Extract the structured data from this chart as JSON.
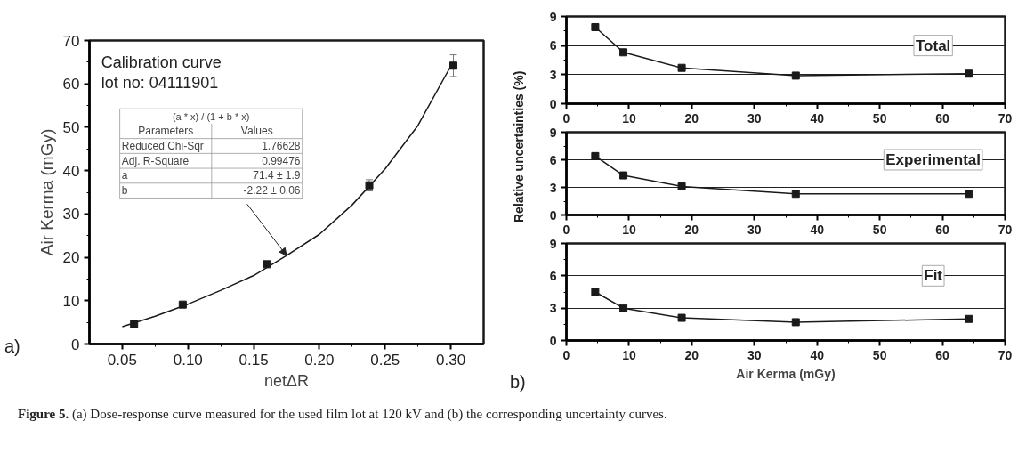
{
  "chart_data": [
    {
      "type": "scatter",
      "xlabel": "netΔR",
      "ylabel": "Air Kerma (mGy)",
      "marker": "square",
      "grid": false,
      "xlim": [
        0.025,
        0.325
      ],
      "xticks": [
        {
          "value": 0.05,
          "label": "0.05"
        },
        {
          "value": 0.1,
          "label": "0.10"
        },
        {
          "value": 0.15,
          "label": "0.15"
        },
        {
          "value": 0.2,
          "label": "0.20"
        },
        {
          "value": 0.25,
          "label": "0.25"
        },
        {
          "value": 0.3,
          "label": "0.30"
        }
      ],
      "ylim": [
        0,
        70
      ],
      "yticks": [
        0,
        10,
        20,
        30,
        40,
        50,
        60,
        70
      ],
      "x": [
        0.059,
        0.096,
        0.16,
        0.238,
        0.302
      ],
      "series": [
        {
          "color": "#1a1a1a",
          "values": [
            4.6,
            9.1,
            18.4,
            36.6,
            64.2
          ],
          "errors": [
            null,
            null,
            null,
            1.3,
            2.5
          ]
        },
        {
          "type": "line",
          "marker": "none",
          "color": "#1a1a1a",
          "x": [
            0.05,
            0.075,
            0.1,
            0.125,
            0.15,
            0.175,
            0.2,
            0.225,
            0.25,
            0.275,
            0.3
          ],
          "values": [
            4.0,
            6.4,
            9.2,
            12.4,
            15.8,
            20.4,
            25.3,
            32.1,
            40.4,
            50.4,
            64.1
          ]
        }
      ],
      "annotations": [
        "Calibration curve",
        "lot no: 04111901",
        "(a * x) / (1 + b * x)",
        "Parameters",
        "Values",
        "Reduced Chi-Sqr",
        "1.76628",
        "Adj. R-Square",
        "0.99476",
        "a",
        "71.4 ± 1.9",
        "b",
        {
          "text": "-2.22 ± 0.06",
          "x": 0.175,
          "y": 20.4
        },
        "a)",
        "Figure 5. (a) Dose-response curve measured for the used film lot at 120 kV and (b) the corresponding uncertainty curves."
      ]
    },
    {
      "type": "line",
      "title": "Total",
      "marker": "square",
      "grid": "y",
      "xlim": [
        0,
        70
      ],
      "xticks": [
        0,
        10,
        20,
        30,
        40,
        50,
        60,
        70
      ],
      "ylim": [
        0,
        9
      ],
      "yticks": [
        0,
        3,
        6,
        9
      ],
      "x": [
        4.6,
        9.1,
        18.4,
        36.6,
        64.2
      ],
      "series": [
        {
          "color": "#1a1a1a",
          "values": [
            7.9,
            5.3,
            3.7,
            2.9,
            3.1
          ]
        }
      ]
    },
    {
      "type": "line",
      "title": "Experimental",
      "ylabel": "Relative uncertainties (%)",
      "marker": "square",
      "grid": "y",
      "xlim": [
        0,
        70
      ],
      "xticks": [
        0,
        10,
        20,
        30,
        40,
        50,
        60,
        70
      ],
      "ylim": [
        0,
        9
      ],
      "yticks": [
        0,
        3,
        6,
        9
      ],
      "x": [
        4.6,
        9.1,
        18.4,
        36.6,
        64.2
      ],
      "series": [
        {
          "color": "#1a1a1a",
          "values": [
            6.4,
            4.3,
            3.1,
            2.3,
            2.3
          ]
        }
      ]
    },
    {
      "type": "line",
      "title": "Fit",
      "xlabel": "Air Kerma (mGy)",
      "marker": "square",
      "grid": "y",
      "xlim": [
        0,
        70
      ],
      "xticks": [
        0,
        10,
        20,
        30,
        40,
        50,
        60,
        70
      ],
      "ylim": [
        0,
        9
      ],
      "yticks": [
        0,
        3,
        6,
        9
      ],
      "x": [
        4.6,
        9.1,
        18.4,
        36.6,
        64.2
      ],
      "series": [
        {
          "color": "#1a1a1a",
          "values": [
            4.5,
            3.0,
            2.1,
            1.7,
            2.0
          ]
        }
      ],
      "annotations": [
        "b)"
      ]
    }
  ]
}
